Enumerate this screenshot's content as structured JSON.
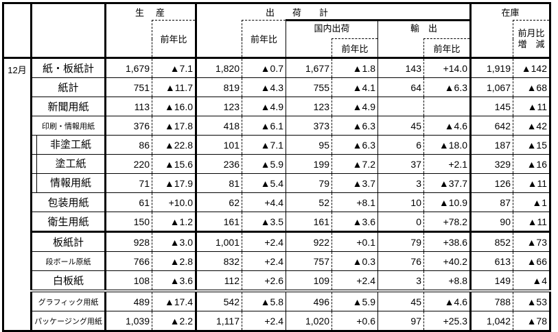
{
  "header": {
    "production": "生　産",
    "shipments_total": "出　　荷　　計",
    "domestic": "国内出荷",
    "export": "輸　出",
    "inventory": "在庫",
    "yoy": "前年比",
    "mom_line1": "前月比",
    "mom_line2": "増　減"
  },
  "month": "12月",
  "rows": [
    {
      "label": "紙・板紙計",
      "values": [
        "1,679",
        "▲7.1",
        "1,820",
        "▲0.7",
        "1,677",
        "▲1.8",
        "143",
        "+14.0",
        "1,919",
        "▲142"
      ]
    },
    {
      "label": "紙計",
      "values": [
        "751",
        "▲11.7",
        "819",
        "▲4.3",
        "755",
        "▲4.1",
        "64",
        "▲6.3",
        "1,067",
        "▲68"
      ]
    },
    {
      "label": "新聞用紙",
      "values": [
        "113",
        "▲16.0",
        "123",
        "▲4.9",
        "123",
        "▲4.9",
        "",
        "",
        "145",
        "▲11"
      ]
    },
    {
      "label": "印刷・情報用紙",
      "values": [
        "376",
        "▲17.8",
        "418",
        "▲6.1",
        "373",
        "▲6.3",
        "45",
        "▲4.6",
        "642",
        "▲42"
      ]
    },
    {
      "label": "非塗工紙",
      "values": [
        "86",
        "▲22.8",
        "101",
        "▲7.1",
        "95",
        "▲6.3",
        "6",
        "▲18.0",
        "187",
        "▲15"
      ]
    },
    {
      "label": "塗工紙",
      "values": [
        "220",
        "▲15.6",
        "236",
        "▲5.9",
        "199",
        "▲7.2",
        "37",
        "+2.1",
        "329",
        "▲16"
      ]
    },
    {
      "label": "情報用紙",
      "values": [
        "71",
        "▲17.9",
        "81",
        "▲5.4",
        "79",
        "▲3.7",
        "3",
        "▲37.7",
        "126",
        "▲11"
      ]
    },
    {
      "label": "包装用紙",
      "values": [
        "61",
        "+10.0",
        "62",
        "+4.4",
        "52",
        "+8.1",
        "10",
        "▲10.9",
        "87",
        "▲1"
      ]
    },
    {
      "label": "衛生用紙",
      "values": [
        "150",
        "▲1.2",
        "161",
        "▲3.5",
        "161",
        "▲3.6",
        "0",
        "+78.2",
        "90",
        "▲11"
      ]
    },
    {
      "label": "板紙計",
      "values": [
        "928",
        "▲3.0",
        "1,001",
        "+2.4",
        "922",
        "+0.1",
        "79",
        "+38.6",
        "852",
        "▲73"
      ]
    },
    {
      "label": "段ボール原紙",
      "values": [
        "766",
        "▲2.8",
        "832",
        "+2.4",
        "757",
        "▲0.3",
        "76",
        "+40.2",
        "613",
        "▲66"
      ]
    },
    {
      "label": "白板紙",
      "values": [
        "108",
        "▲3.6",
        "112",
        "+2.6",
        "109",
        "+2.4",
        "3",
        "+8.8",
        "149",
        "▲4"
      ]
    },
    {
      "label": "グラフィック用紙",
      "values": [
        "489",
        "▲17.4",
        "542",
        "▲5.8",
        "496",
        "▲5.9",
        "45",
        "▲4.6",
        "788",
        "▲53"
      ]
    },
    {
      "label": "パッケージング用紙",
      "values": [
        "1,039",
        "▲2.2",
        "1,117",
        "+2.4",
        "1,020",
        "+0.6",
        "97",
        "+25.3",
        "1,042",
        "▲78"
      ]
    }
  ]
}
